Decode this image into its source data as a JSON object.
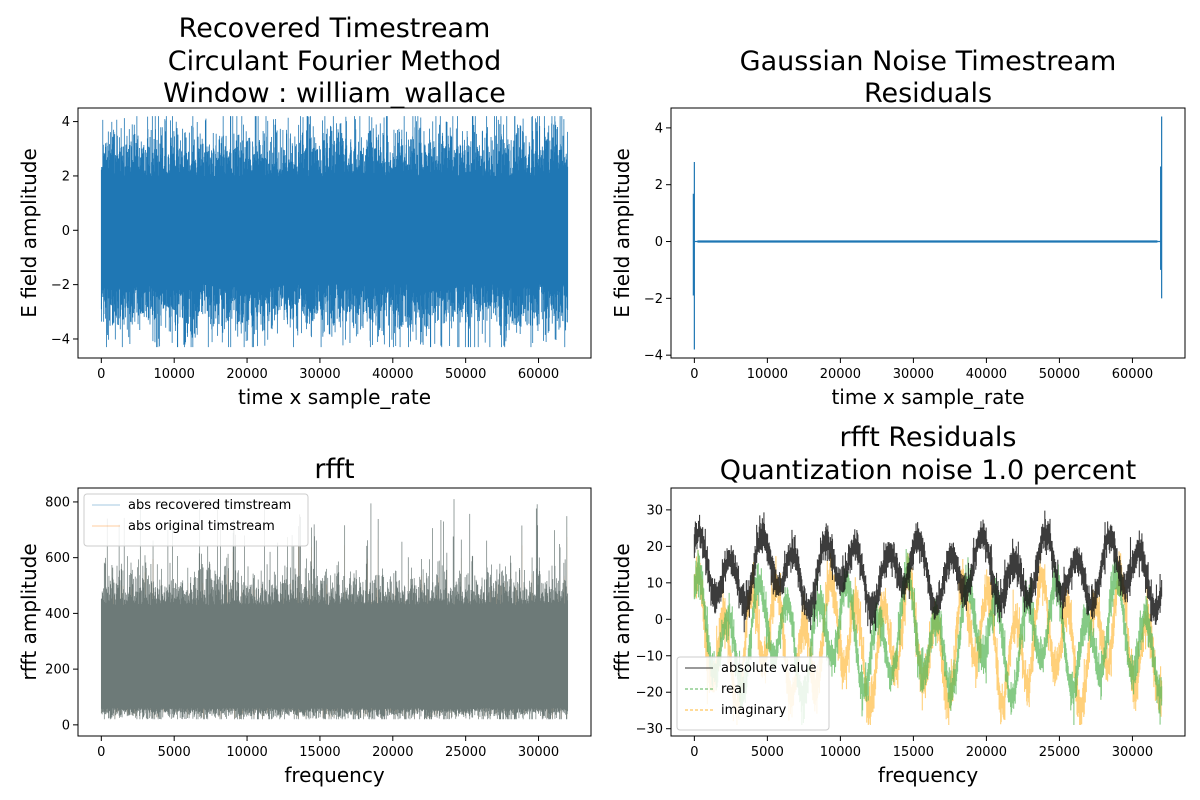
{
  "chart_data": [
    {
      "type": "line",
      "title_lines": [
        "Recovered Timestream",
        "Circulant Fourier Method",
        "Window : william_wallace"
      ],
      "xlabel": "time x sample_rate",
      "ylabel": "E field amplitude",
      "xlim": [
        -3200,
        67200
      ],
      "ylim": [
        -4.7,
        4.5
      ],
      "xticks": [
        0,
        10000,
        20000,
        30000,
        40000,
        50000,
        60000
      ],
      "yticks": [
        -4,
        -2,
        0,
        2,
        4
      ],
      "series": [
        {
          "color": "#1f77b4",
          "description": "noise timestream, envelope approx ±3, peaks to about 4.2 / -4.3",
          "x_range": [
            0,
            64000
          ],
          "envelope": [
            -3.0,
            3.0
          ],
          "peak_max": 4.2,
          "peak_min": -4.3
        }
      ]
    },
    {
      "type": "line",
      "title_lines": [
        "Gaussian Noise Timestream",
        "Residuals"
      ],
      "xlabel": "time x sample_rate",
      "ylabel": "E field amplitude",
      "xlim": [
        -3200,
        67200
      ],
      "ylim": [
        -4.1,
        4.7
      ],
      "xticks": [
        0,
        10000,
        20000,
        30000,
        40000,
        50000,
        60000
      ],
      "yticks": [
        -4,
        -2,
        0,
        2,
        4
      ],
      "series": [
        {
          "color": "#1f77b4",
          "x_range": [
            0,
            64000
          ],
          "baseline": 0,
          "spikes": [
            {
              "x": 0,
              "min": -3.8,
              "max": 2.8
            },
            {
              "x": 64000,
              "min": -2.0,
              "max": 4.4
            }
          ]
        }
      ]
    },
    {
      "type": "line",
      "title_lines": [
        "rfft"
      ],
      "xlabel": "frequency",
      "ylabel": "rfft amplitude",
      "xlim": [
        -1600,
        33600
      ],
      "ylim": [
        -40,
        850
      ],
      "xticks": [
        0,
        5000,
        10000,
        15000,
        20000,
        25000,
        30000
      ],
      "yticks": [
        0,
        200,
        400,
        600,
        800
      ],
      "legend_position": "upper-left",
      "series": [
        {
          "name": "abs recovered timstream",
          "color": "#1f77b4",
          "x_range": [
            0,
            32000
          ],
          "band": [
            30,
            470
          ],
          "peak_max": 810
        },
        {
          "name": "abs original timstream",
          "color": "#ff7f0e",
          "x_range": [
            0,
            32000
          ],
          "band": [
            30,
            470
          ],
          "peak_max": 800
        }
      ]
    },
    {
      "type": "line",
      "title_lines": [
        "rfft Residuals",
        "Quantization noise 1.0 percent"
      ],
      "xlabel": "frequency",
      "ylabel": "rfft amplitude",
      "xlim": [
        -1600,
        33600
      ],
      "ylim": [
        -32,
        36
      ],
      "xticks": [
        0,
        5000,
        10000,
        15000,
        20000,
        25000,
        30000
      ],
      "yticks": [
        -30,
        -20,
        -10,
        0,
        10,
        20,
        30
      ],
      "legend_position": "lower-left",
      "series": [
        {
          "name": "absolute value",
          "color": "#000000",
          "x_range": [
            0,
            32000
          ],
          "approx_range": [
            1,
            33
          ]
        },
        {
          "name": "real",
          "color": "#2ca02c",
          "x_range": [
            0,
            32000
          ],
          "approx_range": [
            -26,
            22
          ]
        },
        {
          "name": "imaginary",
          "color": "#ffa500",
          "x_range": [
            0,
            32000
          ],
          "approx_range": [
            -29,
            26
          ]
        }
      ]
    }
  ]
}
